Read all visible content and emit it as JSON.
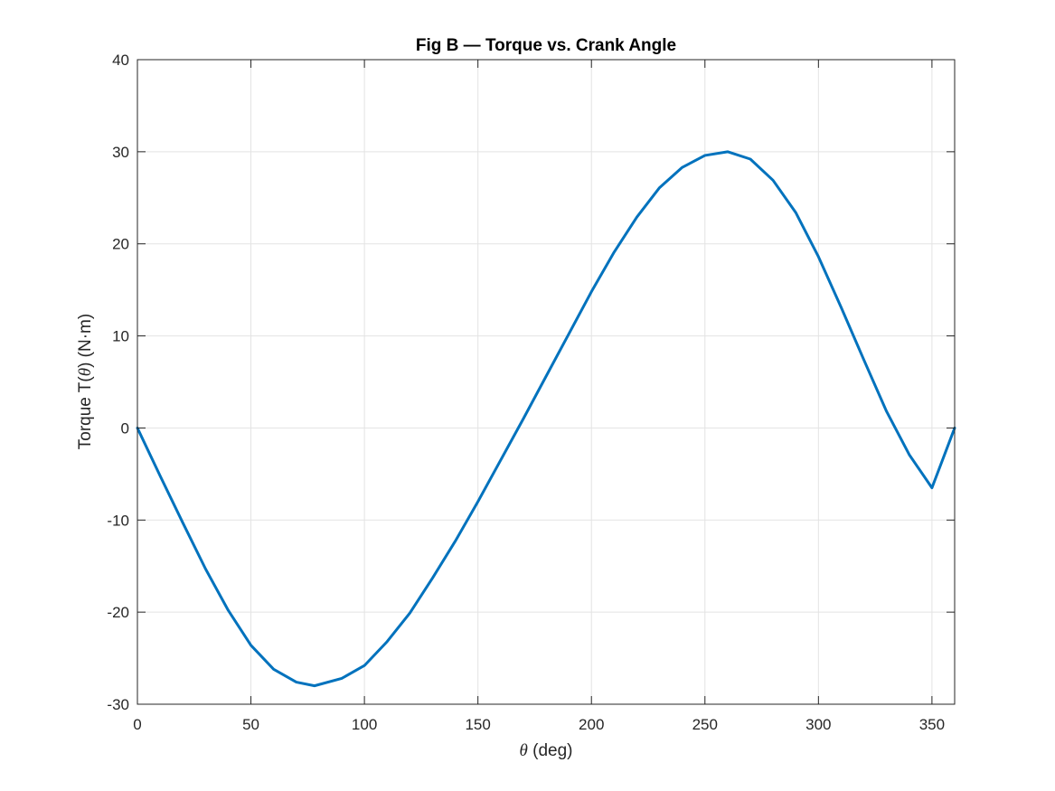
{
  "chart_data": {
    "type": "line",
    "title": "Fig B — Torque vs. Crank Angle",
    "xlabel": {
      "symbol": "θ",
      "text": " (deg)"
    },
    "ylabel": {
      "prefix": "Torque T(",
      "symbol": "θ",
      "suffix": ") (N·m)"
    },
    "xlim": [
      0,
      360
    ],
    "ylim": [
      -30,
      40
    ],
    "xticks": [
      0,
      50,
      100,
      150,
      200,
      250,
      300,
      350
    ],
    "yticks": [
      -30,
      -20,
      -10,
      0,
      10,
      20,
      30,
      40
    ],
    "xtick_labels": [
      "0",
      "50",
      "100",
      "150",
      "200",
      "250",
      "300",
      "350"
    ],
    "ytick_labels": [
      "-30",
      "-20",
      "-10",
      "0",
      "10",
      "20",
      "30",
      "40"
    ],
    "grid": true,
    "colors": {
      "line": "#0072BD",
      "grid": "#e3e3e3",
      "axes": "#262626"
    },
    "series": [
      {
        "x": [
          0,
          10,
          20,
          30,
          40,
          50,
          60,
          70,
          78,
          90,
          100,
          110,
          120,
          130,
          140,
          150,
          160,
          170,
          180,
          190,
          200,
          210,
          220,
          230,
          240,
          250,
          260,
          270,
          280,
          290,
          300,
          310,
          320,
          330,
          340,
          350,
          360
        ],
        "values": [
          0,
          -5.2,
          -10.3,
          -15.3,
          -19.8,
          -23.6,
          -26.2,
          -27.6,
          -28.0,
          -27.2,
          -25.8,
          -23.2,
          -20.1,
          -16.3,
          -12.3,
          -8.0,
          -3.5,
          1.0,
          5.6,
          10.2,
          14.8,
          19.1,
          22.9,
          26.1,
          28.3,
          29.6,
          30.0,
          29.2,
          26.9,
          23.4,
          18.6,
          13.1,
          7.4,
          1.8,
          -2.9,
          -6.5,
          0
        ]
      }
    ]
  }
}
